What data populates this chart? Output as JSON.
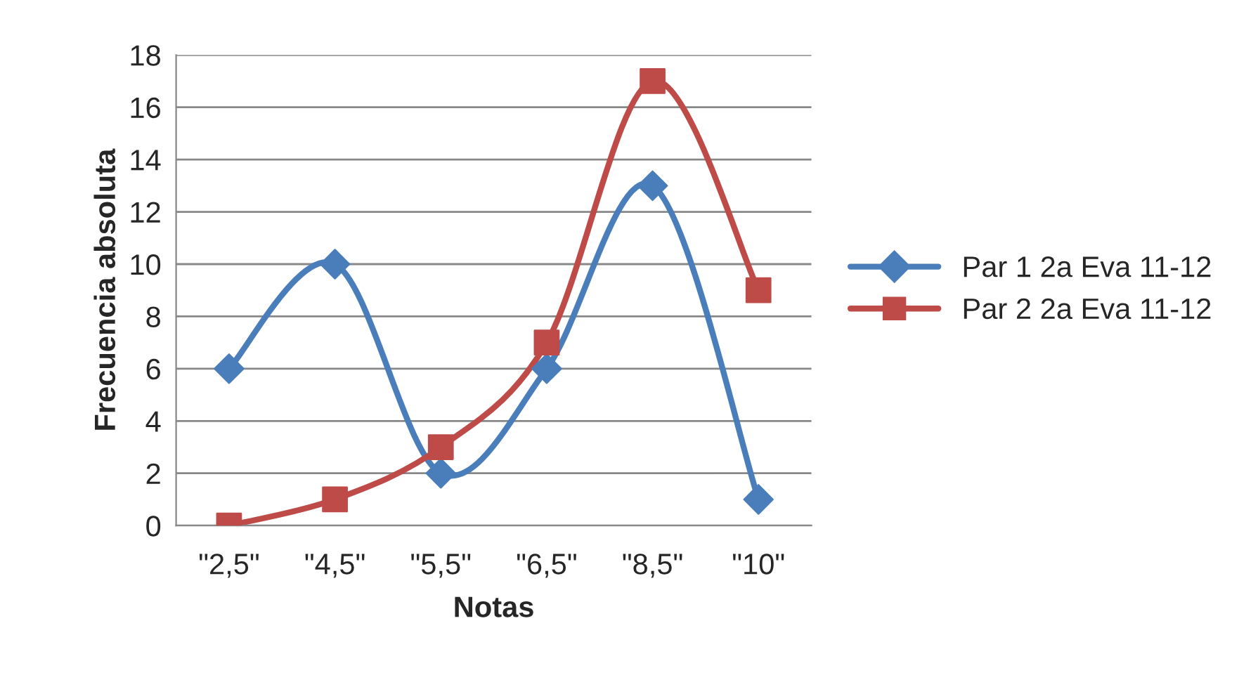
{
  "chart_data": {
    "type": "line",
    "xlabel": "Notas",
    "ylabel": "Frecuencia absoluta",
    "categories": [
      "\"2,5\"",
      "\"4,5\"",
      "\"5,5\"",
      "\"6,5\"",
      "\"8,5\"",
      "\"10\""
    ],
    "series": [
      {
        "name": "Par 1 2a Eva 11-12",
        "color": "#4a7ebb",
        "marker": "diamond",
        "values": [
          6,
          10,
          2,
          6,
          13,
          1
        ]
      },
      {
        "name": "Par 2 2a Eva 11-12",
        "color": "#be4b48",
        "marker": "square",
        "values": [
          0,
          1,
          3,
          7,
          17,
          9
        ]
      }
    ],
    "ylim": [
      0,
      18
    ],
    "yticks": [
      0,
      2,
      4,
      6,
      8,
      10,
      12,
      14,
      16,
      18
    ],
    "grid": "y",
    "legend": "right",
    "line_style": "solid"
  }
}
